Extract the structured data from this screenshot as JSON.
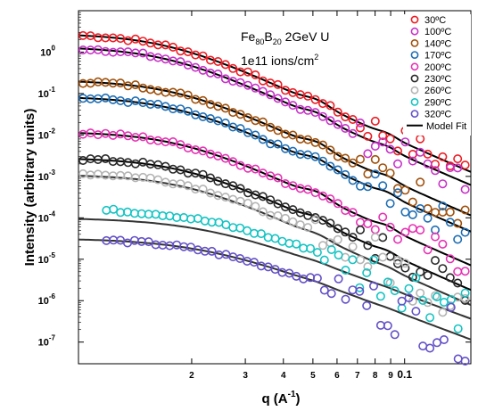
{
  "chart_data": {
    "type": "scatter",
    "title": "",
    "annotation": {
      "line1_base": "Fe",
      "line1_sub1": "80",
      "line1_mid": "B",
      "line1_sub2": "20",
      "line1_rest": " 2GeV U",
      "line2_base": "1e11 ions/cm",
      "line2_sup": "2"
    },
    "xlabel": {
      "base": "q (A",
      "sup": "-1",
      "end": ")"
    },
    "ylabel": "Intensity (arbitrary units)",
    "xscale": "log",
    "yscale": "log",
    "xlim": [
      0.0085,
      0.165
    ],
    "ylim": [
      3e-08,
      10
    ],
    "x_tick_labels": [
      {
        "value": 0.02,
        "label": "2"
      },
      {
        "value": 0.03,
        "label": "3"
      },
      {
        "value": 0.04,
        "label": "4"
      },
      {
        "value": 0.05,
        "label": "5"
      },
      {
        "value": 0.06,
        "label": "6"
      },
      {
        "value": 0.07,
        "label": "7"
      },
      {
        "value": 0.08,
        "label": "8"
      },
      {
        "value": 0.09,
        "label": "9"
      },
      {
        "value": 0.1,
        "label": "0.1"
      }
    ],
    "y_tick_labels": [
      {
        "value": 1,
        "base": "10",
        "exp": "0"
      },
      {
        "value": 0.1,
        "base": "10",
        "exp": "-1"
      },
      {
        "value": 0.01,
        "base": "10",
        "exp": "-2"
      },
      {
        "value": 0.001,
        "base": "10",
        "exp": "-3"
      },
      {
        "value": 0.0001,
        "base": "10",
        "exp": "-4"
      },
      {
        "value": 1e-05,
        "base": "10",
        "exp": "-5"
      },
      {
        "value": 1e-06,
        "base": "10",
        "exp": "-6"
      },
      {
        "value": 1e-07,
        "base": "10",
        "exp": "-7"
      }
    ],
    "legend_position": "top-right",
    "fit_label": "Model Fit",
    "series": [
      {
        "name": "30ºC",
        "color": "#ee1c24",
        "amp": 2.8,
        "q1": 0.0165,
        "d": 3.4,
        "peak": 0.25,
        "tail": 0.05,
        "fit_amp": 2.8,
        "fit_tail": 0.05,
        "fit_peak": 0.25
      },
      {
        "name": "100ºC",
        "color": "#c832c8",
        "amp": 1.35,
        "q1": 0.0165,
        "d": 3.4,
        "peak": 0.25,
        "tail": 0.05,
        "fit_amp": 1.35,
        "fit_tail": 0.05,
        "fit_peak": 0.25
      },
      {
        "name": "140ºC",
        "color": "#a0500a",
        "amp": 0.21,
        "q1": 0.0175,
        "d": 3.4,
        "peak": 0.3,
        "tail": 0.05,
        "fit_amp": 0.21,
        "fit_tail": 0.05,
        "fit_peak": 0.3
      },
      {
        "name": "170ºC",
        "color": "#1e6eb4",
        "amp": 0.085,
        "q1": 0.0175,
        "d": 3.4,
        "peak": 0.3,
        "tail": 0.05,
        "fit_amp": 0.085,
        "fit_tail": 0.05,
        "fit_peak": 0.3
      },
      {
        "name": "200ºC",
        "color": "#e632b4",
        "amp": 0.012,
        "q1": 0.018,
        "d": 3.4,
        "peak": 0.3,
        "tail": 0.05,
        "fit_amp": 0.012,
        "fit_tail": 0.05,
        "fit_peak": 0.3
      },
      {
        "name": "230ºC",
        "color": "#282828",
        "amp": 0.0028,
        "q1": 0.0185,
        "d": 3.4,
        "peak": 0.25,
        "tail": 0.05,
        "fit_amp": 0.0028,
        "fit_tail": 0.05,
        "fit_peak": 0.25
      },
      {
        "name": "260ºC",
        "color": "#b4b4b4",
        "amp": 0.00125,
        "q1": 0.019,
        "d": 3.4,
        "peak": 0.2,
        "tail": 0.06,
        "fit_amp": 0.0011,
        "fit_tail": 0.06,
        "fit_peak": 0.15
      },
      {
        "name": "290ºC",
        "color": "#14c3c3",
        "amp": 0.00017,
        "q1": 0.022,
        "d": 2.8,
        "peak": 0.15,
        "tail": 0.06,
        "fit_amp": 0.0001,
        "fit_tail": 0.1,
        "fit_peak": 0.05
      },
      {
        "name": "320ºC",
        "color": "#6450c8",
        "amp": 3.2e-05,
        "q1": 0.022,
        "d": 2.8,
        "peak": 0.1,
        "tail": 0.06,
        "fit_amp": 3.2e-05,
        "fit_tail": 0.06,
        "fit_peak": 0.05
      }
    ]
  }
}
